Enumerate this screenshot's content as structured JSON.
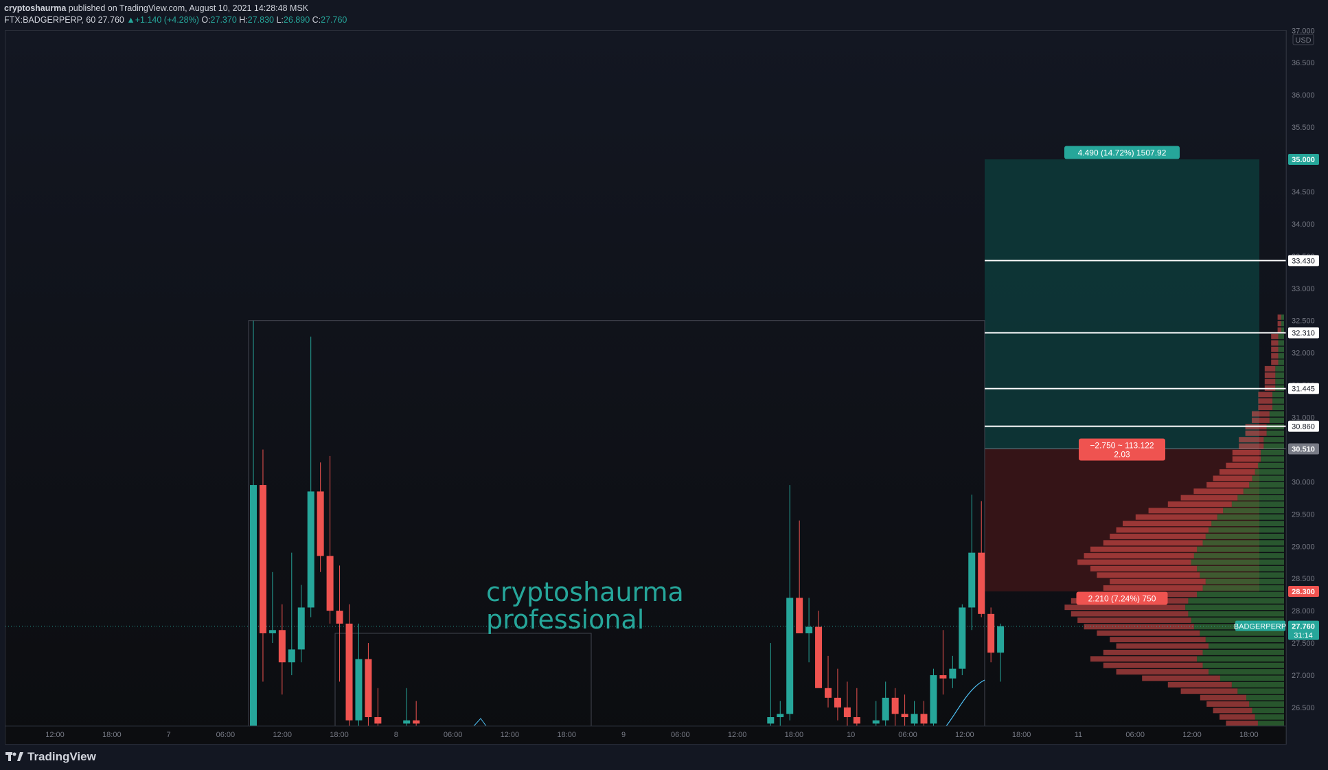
{
  "header": {
    "publisher": "cryptoshaurma",
    "published_text": "published on TradingView.com, August 10, 2021 14:28:48 MSK",
    "symbol": "FTX:BADGERPERP, 60",
    "last": "27.760",
    "change": "+1.140 (+4.28%)",
    "o_label": "O:",
    "o": "27.370",
    "h_label": "H:",
    "h": "27.830",
    "l_label": "L:",
    "l": "26.890",
    "c_label": "C:",
    "c": "27.760"
  },
  "footer": {
    "brand": "TradingView"
  },
  "colors": {
    "up": "#26a69a",
    "down": "#ef5350",
    "background": "#131722",
    "profit_zone": "#0d3a3a",
    "loss_zone": "#3a1517",
    "watermark": "#26a69a"
  },
  "watermark": [
    "cryptoshaurma",
    "professional"
  ],
  "chart_data": {
    "type": "candlestick",
    "symbol": "FTX:BADGERPERP",
    "interval": "60",
    "currency": "USD",
    "y_range": [
      26.2,
      37.0
    ],
    "y_ticks": [
      "26.500",
      "27.000",
      "27.500",
      "28.000",
      "28.500",
      "29.000",
      "29.500",
      "30.000",
      "30.500",
      "31.000",
      "31.500",
      "32.000",
      "32.500",
      "33.000",
      "33.500",
      "34.000",
      "34.500",
      "35.000",
      "35.500",
      "36.000",
      "36.500",
      "37.000"
    ],
    "x_ticks": [
      "12:00",
      "18:00",
      "7",
      "06:00",
      "12:00",
      "18:00",
      "8",
      "06:00",
      "12:00",
      "18:00",
      "9",
      "06:00",
      "12:00",
      "18:00",
      "10",
      "06:00",
      "12:00",
      "18:00",
      "11",
      "06:00",
      "12:00",
      "18:00"
    ],
    "candles": [
      {
        "i": 0,
        "o": 26.2,
        "h": 32.5,
        "l": 26.2,
        "c": 29.95
      },
      {
        "i": 1,
        "o": 29.95,
        "h": 30.5,
        "l": 26.9,
        "c": 27.65
      },
      {
        "i": 2,
        "o": 27.65,
        "h": 28.6,
        "l": 27.5,
        "c": 27.7
      },
      {
        "i": 3,
        "o": 27.7,
        "h": 28.1,
        "l": 26.7,
        "c": 27.2
      },
      {
        "i": 4,
        "o": 27.2,
        "h": 28.9,
        "l": 27.0,
        "c": 27.4
      },
      {
        "i": 5,
        "o": 27.4,
        "h": 28.4,
        "l": 27.2,
        "c": 28.05
      },
      {
        "i": 6,
        "o": 28.05,
        "h": 32.25,
        "l": 27.9,
        "c": 29.85
      },
      {
        "i": 7,
        "o": 29.85,
        "h": 30.3,
        "l": 28.6,
        "c": 28.85
      },
      {
        "i": 8,
        "o": 28.85,
        "h": 30.4,
        "l": 27.8,
        "c": 28.0
      },
      {
        "i": 9,
        "o": 28.0,
        "h": 28.7,
        "l": 26.9,
        "c": 27.8
      },
      {
        "i": 10,
        "o": 27.8,
        "h": 28.1,
        "l": 26.2,
        "c": 26.3
      },
      {
        "i": 11,
        "o": 26.3,
        "h": 27.8,
        "l": 26.2,
        "c": 27.25
      },
      {
        "i": 12,
        "o": 27.25,
        "h": 27.5,
        "l": 26.2,
        "c": 26.35
      },
      {
        "i": 13,
        "o": 26.35,
        "h": 26.8,
        "l": 26.2,
        "c": 26.25
      },
      {
        "i": 16,
        "o": 26.25,
        "h": 26.8,
        "l": 26.2,
        "c": 26.3
      },
      {
        "i": 17,
        "o": 26.3,
        "h": 26.6,
        "l": 26.2,
        "c": 26.25
      },
      {
        "i": 54,
        "o": 26.25,
        "h": 27.5,
        "l": 26.2,
        "c": 26.35
      },
      {
        "i": 55,
        "o": 26.35,
        "h": 26.6,
        "l": 26.2,
        "c": 26.4
      },
      {
        "i": 56,
        "o": 26.4,
        "h": 29.95,
        "l": 26.3,
        "c": 28.2
      },
      {
        "i": 57,
        "o": 28.2,
        "h": 29.4,
        "l": 27.7,
        "c": 27.65
      },
      {
        "i": 58,
        "o": 27.65,
        "h": 28.2,
        "l": 27.2,
        "c": 27.75
      },
      {
        "i": 59,
        "o": 27.75,
        "h": 28.0,
        "l": 26.9,
        "c": 26.8
      },
      {
        "i": 60,
        "o": 26.8,
        "h": 27.3,
        "l": 26.5,
        "c": 26.65
      },
      {
        "i": 61,
        "o": 26.65,
        "h": 27.1,
        "l": 26.3,
        "c": 26.5
      },
      {
        "i": 62,
        "o": 26.5,
        "h": 26.9,
        "l": 26.2,
        "c": 26.35
      },
      {
        "i": 63,
        "o": 26.35,
        "h": 26.8,
        "l": 26.2,
        "c": 26.25
      },
      {
        "i": 65,
        "o": 26.25,
        "h": 26.6,
        "l": 26.2,
        "c": 26.3
      },
      {
        "i": 66,
        "o": 26.3,
        "h": 26.9,
        "l": 26.2,
        "c": 26.65
      },
      {
        "i": 67,
        "o": 26.65,
        "h": 26.8,
        "l": 26.2,
        "c": 26.4
      },
      {
        "i": 68,
        "o": 26.4,
        "h": 26.7,
        "l": 26.2,
        "c": 26.35
      },
      {
        "i": 69,
        "o": 26.25,
        "h": 26.6,
        "l": 26.2,
        "c": 26.4
      },
      {
        "i": 70,
        "o": 26.4,
        "h": 26.6,
        "l": 26.2,
        "c": 26.25
      },
      {
        "i": 71,
        "o": 26.25,
        "h": 27.1,
        "l": 26.2,
        "c": 27.0
      },
      {
        "i": 72,
        "o": 27.0,
        "h": 27.7,
        "l": 26.7,
        "c": 26.95
      },
      {
        "i": 73,
        "o": 26.95,
        "h": 27.3,
        "l": 26.8,
        "c": 27.1
      },
      {
        "i": 74,
        "o": 27.1,
        "h": 28.1,
        "l": 27.0,
        "c": 28.05
      },
      {
        "i": 75,
        "o": 28.05,
        "h": 29.8,
        "l": 27.7,
        "c": 28.9
      },
      {
        "i": 76,
        "o": 28.9,
        "h": 29.7,
        "l": 27.9,
        "c": 27.95
      },
      {
        "i": 77,
        "o": 27.95,
        "h": 28.05,
        "l": 27.2,
        "c": 27.35
      },
      {
        "i": 78,
        "o": 27.35,
        "h": 27.8,
        "l": 26.9,
        "c": 27.76
      }
    ],
    "position": {
      "side": "long",
      "entry": 30.51,
      "take_profit": 35.0,
      "stop_loss": 28.3,
      "target_label": "4.490 (14.72%) 1507.92",
      "stop_label": "2.210 (7.24%) 750",
      "center_label_line1": "−2.750 ~ 113.122",
      "center_label_line2": "2.03"
    },
    "horizontal_levels": [
      33.43,
      32.31,
      31.445,
      30.86
    ],
    "price_tags": [
      {
        "value": "35.000",
        "price": 35.0,
        "bg": "#26a69a",
        "fg": "#ffffff"
      },
      {
        "value": "33.430",
        "price": 33.43,
        "bg": "#ffffff",
        "fg": "#131722"
      },
      {
        "value": "32.310",
        "price": 32.31,
        "bg": "#ffffff",
        "fg": "#131722"
      },
      {
        "value": "31.445",
        "price": 31.445,
        "bg": "#ffffff",
        "fg": "#131722"
      },
      {
        "value": "30.860",
        "price": 30.86,
        "bg": "#ffffff",
        "fg": "#131722"
      },
      {
        "value": "30.510",
        "price": 30.51,
        "bg": "#787b86",
        "fg": "#ffffff"
      },
      {
        "value": "28.300",
        "price": 28.3,
        "bg": "#ef5350",
        "fg": "#ffffff"
      }
    ],
    "last_price": {
      "symbol": "BADGERPERP",
      "value": "27.760",
      "countdown": "31:14",
      "price": 27.76
    },
    "volume_profile": {
      "price_step": 0.1,
      "total": [
        9,
        10,
        11,
        12,
        13,
        16,
        18,
        22,
        26,
        28,
        30,
        28,
        26,
        27,
        29,
        31,
        32,
        33,
        34,
        33,
        30,
        28,
        27,
        29,
        30,
        32,
        31,
        30,
        28,
        27,
        26,
        25,
        23,
        21,
        18,
        16,
        14,
        12,
        11,
        10,
        9,
        8,
        8,
        7,
        7,
        6,
        6,
        5,
        5,
        4,
        4,
        4,
        3,
        3,
        3,
        3,
        2,
        2,
        2,
        2,
        2,
        1,
        1,
        1
      ],
      "buy_share": 0.45
    }
  }
}
